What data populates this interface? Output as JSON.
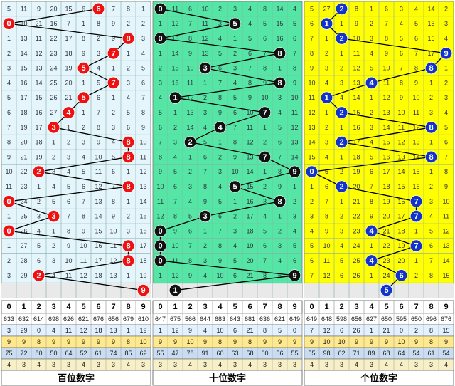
{
  "chart_data": {
    "type": "table",
    "digits": [
      "0",
      "1",
      "2",
      "3",
      "4",
      "5",
      "6",
      "7",
      "8",
      "9"
    ],
    "panels": [
      {
        "label": "百位数字",
        "bg": "#e4f6fb",
        "ball_color": "#ee1111",
        "path": [
          6,
          0,
          8,
          7,
          5,
          7,
          5,
          4,
          3,
          8,
          8,
          2,
          8,
          0,
          3,
          0,
          8,
          8,
          2,
          9
        ],
        "cells": [
          [
            5,
            11,
            9,
            20,
            15,
            6,
            null,
            7,
            8,
            1
          ],
          [
            null,
            10,
            21,
            16,
            7,
            1,
            8,
            9,
            2,
            2
          ],
          [
            1,
            13,
            11,
            22,
            17,
            8,
            2,
            9,
            null,
            3
          ],
          [
            2,
            14,
            12,
            23,
            18,
            9,
            3,
            null,
            1,
            4
          ],
          [
            3,
            15,
            13,
            24,
            19,
            null,
            4,
            1,
            2,
            5
          ],
          [
            4,
            16,
            14,
            25,
            20,
            1,
            5,
            null,
            3,
            6
          ],
          [
            5,
            17,
            15,
            26,
            21,
            null,
            6,
            1,
            4,
            7
          ],
          [
            6,
            18,
            16,
            27,
            null,
            1,
            7,
            2,
            5,
            8
          ],
          [
            7,
            19,
            17,
            null,
            1,
            2,
            8,
            3,
            6,
            9
          ],
          [
            8,
            20,
            18,
            1,
            2,
            3,
            9,
            4,
            null,
            10
          ],
          [
            9,
            21,
            19,
            2,
            3,
            4,
            10,
            5,
            null,
            11
          ],
          [
            10,
            22,
            null,
            3,
            4,
            5,
            11,
            6,
            1,
            12
          ],
          [
            11,
            23,
            1,
            4,
            5,
            6,
            12,
            7,
            null,
            13
          ],
          [
            null,
            24,
            2,
            5,
            6,
            7,
            13,
            8,
            1,
            14
          ],
          [
            1,
            25,
            3,
            null,
            7,
            8,
            14,
            9,
            2,
            15
          ],
          [
            null,
            26,
            4,
            1,
            8,
            9,
            15,
            10,
            3,
            16
          ],
          [
            1,
            27,
            5,
            2,
            9,
            10,
            16,
            11,
            null,
            17
          ],
          [
            2,
            28,
            6,
            3,
            10,
            11,
            17,
            12,
            null,
            18
          ],
          [
            3,
            29,
            null,
            4,
            11,
            12,
            18,
            13,
            1,
            19
          ],
          [
            4,
            30,
            1,
            5,
            12,
            13,
            19,
            14,
            2,
            null
          ]
        ],
        "stats": [
          [
            "633",
            "632",
            "614",
            "698",
            "626",
            "621",
            "676",
            "656",
            "679",
            "610"
          ],
          [
            "3",
            "29",
            "0",
            "4",
            "11",
            "12",
            "18",
            "13",
            "1",
            "19"
          ],
          [
            "9",
            "9",
            "8",
            "9",
            "9",
            "9",
            "9",
            "9",
            "8",
            "10"
          ],
          [
            "75",
            "72",
            "80",
            "50",
            "64",
            "52",
            "61",
            "74",
            "85",
            "62"
          ],
          [
            "4",
            "3",
            "4",
            "3",
            "3",
            "4",
            "3",
            "3",
            "4",
            "3"
          ]
        ]
      },
      {
        "label": "十位数字",
        "bg": "#55e6a6",
        "ball_color": "#111111",
        "path": [
          0,
          5,
          0,
          8,
          3,
          8,
          1,
          7,
          4,
          2,
          7,
          9,
          5,
          8,
          3,
          0,
          0,
          0,
          9,
          1
        ],
        "cells": [
          [
            null,
            11,
            6,
            10,
            2,
            3,
            4,
            8,
            14,
            4
          ],
          [
            1,
            12,
            7,
            11,
            3,
            null,
            4,
            5,
            15,
            5
          ],
          [
            null,
            13,
            8,
            12,
            4,
            1,
            5,
            6,
            16,
            6
          ],
          [
            1,
            14,
            9,
            13,
            5,
            2,
            6,
            7,
            null,
            7
          ],
          [
            2,
            15,
            10,
            null,
            6,
            3,
            7,
            8,
            1,
            8
          ],
          [
            3,
            16,
            11,
            1,
            7,
            4,
            8,
            9,
            2,
            9
          ],
          [
            4,
            null,
            12,
            2,
            8,
            5,
            9,
            10,
            3,
            10
          ],
          [
            5,
            1,
            13,
            3,
            9,
            6,
            10,
            null,
            4,
            11
          ],
          [
            6,
            2,
            14,
            4,
            null,
            7,
            11,
            1,
            5,
            12
          ],
          [
            7,
            3,
            null,
            5,
            1,
            8,
            12,
            2,
            6,
            13
          ],
          [
            8,
            4,
            1,
            6,
            2,
            9,
            13,
            null,
            7,
            14
          ],
          [
            9,
            5,
            2,
            7,
            3,
            10,
            14,
            1,
            8,
            null
          ],
          [
            10,
            6,
            3,
            8,
            4,
            null,
            15,
            2,
            9,
            1
          ],
          [
            11,
            7,
            4,
            9,
            5,
            1,
            16,
            3,
            null,
            2
          ],
          [
            12,
            8,
            5,
            null,
            6,
            2,
            17,
            4,
            1,
            3
          ],
          [
            null,
            9,
            6,
            1,
            7,
            3,
            18,
            5,
            2,
            4
          ],
          [
            null,
            10,
            7,
            2,
            8,
            4,
            19,
            6,
            3,
            5
          ],
          [
            null,
            11,
            8,
            3,
            9,
            5,
            20,
            7,
            4,
            6
          ],
          [
            1,
            12,
            9,
            4,
            10,
            6,
            21,
            8,
            5,
            null
          ],
          [
            2,
            null,
            10,
            5,
            11,
            7,
            22,
            9,
            6,
            1
          ]
        ],
        "stats": [
          [
            "647",
            "675",
            "566",
            "644",
            "683",
            "643",
            "681",
            "636",
            "621",
            "649"
          ],
          [
            "1",
            "12",
            "9",
            "4",
            "10",
            "6",
            "21",
            "8",
            "5",
            "0"
          ],
          [
            "9",
            "9",
            "10",
            "9",
            "8",
            "9",
            "8",
            "9",
            "9",
            "9"
          ],
          [
            "55",
            "47",
            "78",
            "91",
            "60",
            "63",
            "58",
            "60",
            "56",
            "55"
          ],
          [
            "3",
            "3",
            "4",
            "3",
            "4",
            "3",
            "4",
            "3",
            "3",
            "3"
          ]
        ]
      },
      {
        "label": "个位数字",
        "bg": "#ffff00",
        "ball_color": "#1133cc",
        "path": [
          2,
          1,
          2,
          9,
          8,
          4,
          1,
          2,
          8,
          2,
          8,
          0,
          2,
          7,
          7,
          4,
          7,
          4,
          6,
          5
        ],
        "cells": [
          [
            5,
            27,
            null,
            8,
            1,
            6,
            3,
            4,
            14,
            2
          ],
          [
            6,
            null,
            1,
            9,
            2,
            7,
            4,
            5,
            15,
            3
          ],
          [
            7,
            1,
            null,
            10,
            3,
            8,
            5,
            6,
            16,
            4
          ],
          [
            8,
            2,
            1,
            11,
            4,
            9,
            6,
            7,
            17,
            null
          ],
          [
            9,
            3,
            2,
            12,
            5,
            10,
            7,
            8,
            null,
            1
          ],
          [
            10,
            4,
            3,
            13,
            null,
            11,
            8,
            9,
            1,
            2
          ],
          [
            11,
            null,
            4,
            14,
            1,
            12,
            9,
            10,
            2,
            3
          ],
          [
            12,
            1,
            null,
            15,
            2,
            13,
            10,
            11,
            3,
            4
          ],
          [
            13,
            2,
            1,
            16,
            3,
            14,
            11,
            12,
            null,
            5
          ],
          [
            14,
            3,
            null,
            17,
            4,
            15,
            12,
            13,
            1,
            6
          ],
          [
            15,
            4,
            1,
            18,
            5,
            16,
            13,
            14,
            null,
            7
          ],
          [
            null,
            5,
            2,
            19,
            6,
            17,
            14,
            15,
            1,
            8
          ],
          [
            1,
            6,
            null,
            20,
            7,
            18,
            15,
            16,
            2,
            9
          ],
          [
            2,
            7,
            1,
            21,
            8,
            19,
            16,
            null,
            3,
            10
          ],
          [
            3,
            8,
            2,
            22,
            9,
            20,
            17,
            null,
            4,
            11
          ],
          [
            4,
            9,
            3,
            23,
            null,
            21,
            18,
            1,
            5,
            12
          ],
          [
            5,
            10,
            4,
            24,
            1,
            22,
            19,
            null,
            6,
            13
          ],
          [
            6,
            11,
            5,
            25,
            null,
            23,
            20,
            1,
            7,
            14
          ],
          [
            7,
            12,
            6,
            26,
            1,
            24,
            null,
            2,
            8,
            15
          ],
          [
            8,
            13,
            7,
            27,
            2,
            null,
            1,
            3,
            9,
            16
          ]
        ],
        "stats": [
          [
            "649",
            "648",
            "598",
            "656",
            "627",
            "650",
            "595",
            "650",
            "696",
            "676"
          ],
          [
            "7",
            "12",
            "6",
            "26",
            "1",
            "21",
            "0",
            "2",
            "8",
            "15"
          ],
          [
            "9",
            "10",
            "10",
            "9",
            "9",
            "9",
            "10",
            "9",
            "8",
            "9"
          ],
          [
            "55",
            "98",
            "62",
            "71",
            "89",
            "68",
            "64",
            "54",
            "61",
            "54"
          ],
          [
            "4",
            "3",
            "3",
            "4",
            "3",
            "4",
            "4",
            "3",
            "3",
            "4"
          ]
        ]
      }
    ]
  }
}
